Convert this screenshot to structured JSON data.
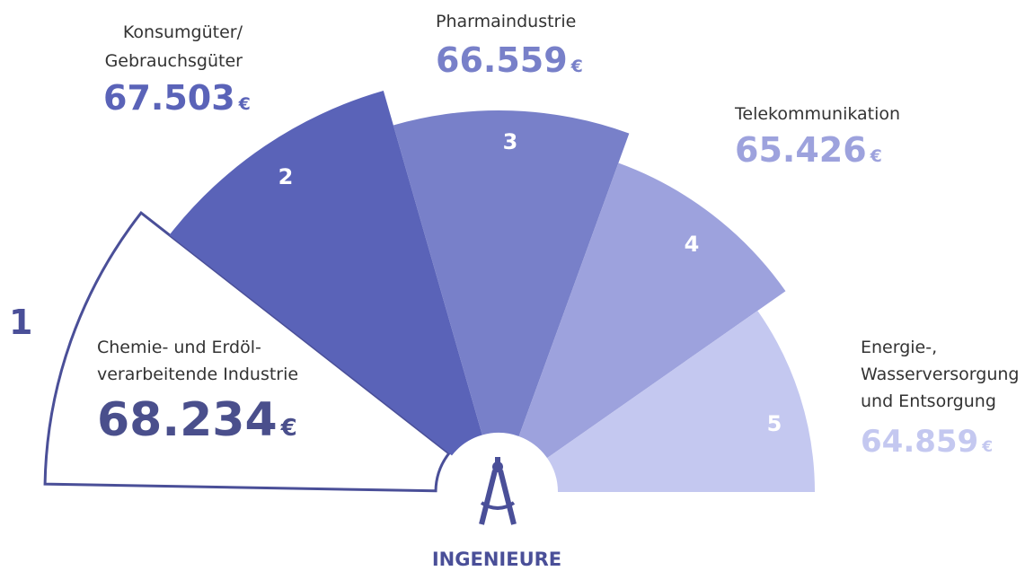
{
  "chart_data": {
    "type": "fan",
    "title": "INGENIEURE",
    "unit": "€",
    "ranks": [
      1,
      2,
      3,
      4,
      5
    ],
    "categories": [
      [
        "Chemie- und Erdöl-",
        "verarbeitende Industrie"
      ],
      [
        "Konsumgüter/",
        "Gebrauchsgüter"
      ],
      [
        "Pharmaindustrie"
      ],
      [
        "Telekommunikation"
      ],
      [
        "Energie-,",
        "Wasserversorgung",
        "und Entsorgung"
      ]
    ],
    "values": [
      68234,
      67503,
      66559,
      65426,
      64859
    ],
    "value_labels": [
      "68.234",
      "67.503",
      "66.559",
      "65.426",
      "64.859"
    ],
    "colors": [
      "#ffffff",
      "#5a63b8",
      "#7880c9",
      "#9da2dd",
      "#c4c8f0"
    ],
    "text_colors": [
      "#4a4f8c",
      "#5a63b8",
      "#7880c9",
      "#9da2dd",
      "#c4c8f0"
    ]
  }
}
